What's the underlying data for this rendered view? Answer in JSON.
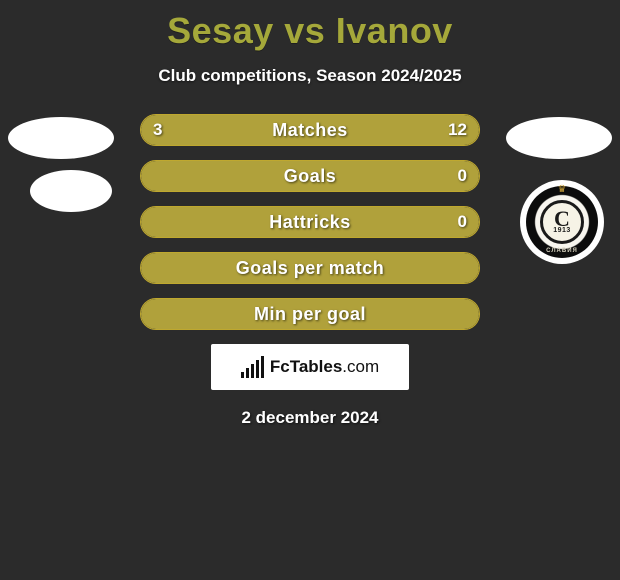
{
  "title": "Sesay vs Ivanov",
  "subtitle": "Club competitions, Season 2024/2025",
  "date": "2 december 2024",
  "brand": {
    "name": "FcTables",
    "suffix": ".com"
  },
  "crest": {
    "letter": "C",
    "year": "1913",
    "ribbon": "СЛАВИЯ"
  },
  "colors": {
    "background": "#2b2b2b",
    "accent": "#a5a83a",
    "bar_fill": "#b0a13b",
    "bar_border": "#bfa82f",
    "text": "#ffffff"
  },
  "stats": [
    {
      "label": "Matches",
      "left_value": "3",
      "right_value": "12",
      "left_pct": 20,
      "right_pct": 80,
      "show_values": true
    },
    {
      "label": "Goals",
      "left_value": "",
      "right_value": "0",
      "left_pct": 0,
      "right_pct": 100,
      "show_values": true
    },
    {
      "label": "Hattricks",
      "left_value": "",
      "right_value": "0",
      "left_pct": 0,
      "right_pct": 100,
      "show_values": true
    },
    {
      "label": "Goals per match",
      "left_value": "",
      "right_value": "",
      "left_pct": 0,
      "right_pct": 100,
      "show_values": false
    },
    {
      "label": "Min per goal",
      "left_value": "",
      "right_value": "",
      "left_pct": 0,
      "right_pct": 100,
      "show_values": false
    }
  ]
}
